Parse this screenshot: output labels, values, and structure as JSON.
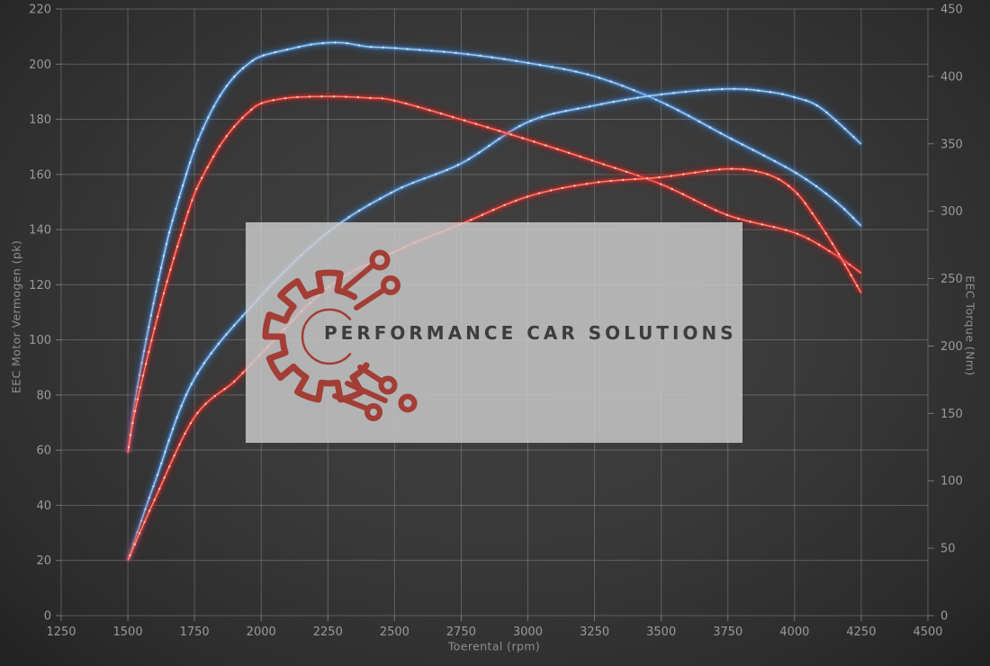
{
  "watermark": {
    "text": "PERFORMANCE CAR SOLUTIONS"
  },
  "chart_data": {
    "type": "line",
    "title": "",
    "xlabel": "Toerental (rpm)",
    "ylabel_left": "EEC Motor Vermogen (pk)",
    "ylabel_right": "EEC Torque (Nm)",
    "x_range": [
      1250,
      4500
    ],
    "y_left_range": [
      0,
      220
    ],
    "y_right_range": [
      0,
      450
    ],
    "grid": true,
    "legend": "none",
    "x_ticks": [
      1250,
      1500,
      1750,
      2000,
      2250,
      2500,
      2750,
      3000,
      3250,
      3500,
      3750,
      4000,
      4250,
      4500
    ],
    "y_left_ticks": [
      0,
      20,
      40,
      60,
      80,
      100,
      120,
      140,
      160,
      180,
      200,
      220
    ],
    "y_right_ticks": [
      0,
      50,
      100,
      150,
      200,
      250,
      300,
      350,
      400,
      450
    ],
    "colors": {
      "blue": {
        "glow": "#2a6cc0",
        "base": "#4f93d8",
        "core": "#a8d2f5",
        "marker": "#d9ecff"
      },
      "red": {
        "glow": "#b01515",
        "base": "#e02828",
        "core": "#ff8a72",
        "marker": "#ffd3c8"
      },
      "grid": "#c8c8c8",
      "tick_text": "#9a9a9a",
      "axis_title_text": "#8f8f8f",
      "watermark_bg": "#c9c9c9",
      "logo_red": "#a23e36",
      "logo_text": "#3d3d3d"
    },
    "series": [
      {
        "name": "torque-blue",
        "axis": "right",
        "color": "blue",
        "unit": "Nm",
        "points": [
          [
            1500,
            121
          ],
          [
            1520,
            150
          ],
          [
            1550,
            185
          ],
          [
            1600,
            235
          ],
          [
            1650,
            280
          ],
          [
            1700,
            315
          ],
          [
            1750,
            346
          ],
          [
            1800,
            369
          ],
          [
            1850,
            387
          ],
          [
            1900,
            400
          ],
          [
            1950,
            409
          ],
          [
            2000,
            415
          ],
          [
            2100,
            420
          ],
          [
            2200,
            424
          ],
          [
            2300,
            425
          ],
          [
            2400,
            422
          ],
          [
            2500,
            421
          ],
          [
            2750,
            417
          ],
          [
            3000,
            410
          ],
          [
            3250,
            400
          ],
          [
            3500,
            381
          ],
          [
            3750,
            355
          ],
          [
            4000,
            329
          ],
          [
            4150,
            308
          ],
          [
            4250,
            289
          ]
        ]
      },
      {
        "name": "power-blue",
        "axis": "left",
        "color": "blue",
        "unit": "pk",
        "points": [
          [
            1500,
            20
          ],
          [
            1600,
            48
          ],
          [
            1750,
            86
          ],
          [
            2000,
            116
          ],
          [
            2250,
            139
          ],
          [
            2500,
            154
          ],
          [
            2750,
            164
          ],
          [
            3000,
            179
          ],
          [
            3250,
            185
          ],
          [
            3500,
            189
          ],
          [
            3750,
            191
          ],
          [
            3900,
            190
          ],
          [
            4000,
            188
          ],
          [
            4100,
            184
          ],
          [
            4250,
            171
          ]
        ]
      },
      {
        "name": "torque-red",
        "axis": "right",
        "color": "red",
        "unit": "Nm",
        "points": [
          [
            1500,
            121
          ],
          [
            1520,
            145
          ],
          [
            1550,
            172
          ],
          [
            1600,
            213
          ],
          [
            1650,
            250
          ],
          [
            1700,
            283
          ],
          [
            1750,
            313
          ],
          [
            1800,
            333
          ],
          [
            1850,
            350
          ],
          [
            1900,
            363
          ],
          [
            1950,
            373
          ],
          [
            2000,
            380
          ],
          [
            2100,
            384
          ],
          [
            2200,
            385
          ],
          [
            2300,
            385
          ],
          [
            2400,
            384
          ],
          [
            2500,
            382
          ],
          [
            2750,
            368
          ],
          [
            3000,
            353
          ],
          [
            3250,
            337
          ],
          [
            3500,
            320
          ],
          [
            3750,
            297
          ],
          [
            4000,
            284
          ],
          [
            4150,
            268
          ],
          [
            4250,
            254
          ]
        ]
      },
      {
        "name": "power-red",
        "axis": "left",
        "color": "red",
        "unit": "pk",
        "points": [
          [
            1500,
            20
          ],
          [
            1600,
            42
          ],
          [
            1750,
            72
          ],
          [
            1900,
            85
          ],
          [
            2000,
            95
          ],
          [
            2250,
            119
          ],
          [
            2500,
            132
          ],
          [
            2750,
            142
          ],
          [
            3000,
            152
          ],
          [
            3250,
            157
          ],
          [
            3500,
            159
          ],
          [
            3750,
            162
          ],
          [
            3900,
            160
          ],
          [
            4000,
            154
          ],
          [
            4080,
            144
          ],
          [
            4160,
            132
          ],
          [
            4250,
            117
          ]
        ]
      }
    ]
  }
}
